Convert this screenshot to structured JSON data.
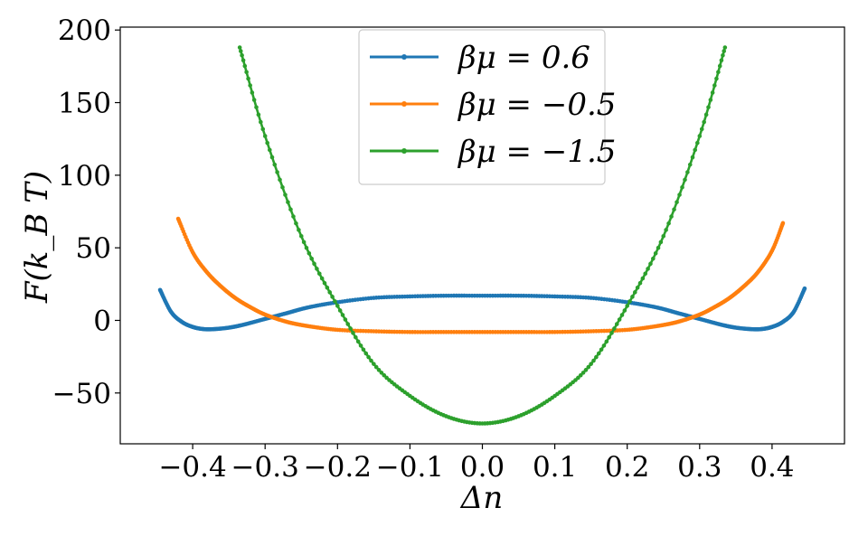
{
  "chart_data": {
    "type": "line",
    "xlabel": "Δn",
    "ylabel": "F(k_B T)",
    "xlim": [
      -0.5,
      0.5
    ],
    "ylim": [
      -85,
      202
    ],
    "xticks": [
      {
        "value": -0.4,
        "label": "−0.4"
      },
      {
        "value": -0.3,
        "label": "−0.3"
      },
      {
        "value": -0.2,
        "label": "−0.2"
      },
      {
        "value": -0.1,
        "label": "−0.1"
      },
      {
        "value": 0.0,
        "label": "0.0"
      },
      {
        "value": 0.1,
        "label": "0.1"
      },
      {
        "value": 0.2,
        "label": "0.2"
      },
      {
        "value": 0.3,
        "label": "0.3"
      },
      {
        "value": 0.4,
        "label": "0.4"
      }
    ],
    "yticks": [
      {
        "value": -50,
        "label": "−50"
      },
      {
        "value": 0,
        "label": "0"
      },
      {
        "value": 50,
        "label": "50"
      },
      {
        "value": 100,
        "label": "100"
      },
      {
        "value": 150,
        "label": "150"
      },
      {
        "value": 200,
        "label": "200"
      }
    ],
    "grid": false,
    "legend_position": "top-center",
    "markers": true,
    "series": [
      {
        "name": "βμ = 0.6",
        "color": "#1f77b4",
        "x": [
          -0.445,
          -0.43,
          -0.415,
          -0.4,
          -0.385,
          -0.37,
          -0.35,
          -0.33,
          -0.3,
          -0.27,
          -0.24,
          -0.2,
          -0.15,
          -0.1,
          -0.05,
          0.0,
          0.05,
          0.1,
          0.15,
          0.2,
          0.24,
          0.27,
          0.3,
          0.33,
          0.35,
          0.37,
          0.385,
          0.4,
          0.415,
          0.43,
          0.445
        ],
        "y": [
          21,
          6,
          -1,
          -4.5,
          -6,
          -6,
          -5,
          -3,
          1,
          5,
          9,
          12.5,
          15.5,
          16.5,
          17,
          17,
          17,
          16.5,
          15.5,
          12.5,
          9,
          5,
          1,
          -3,
          -5,
          -6,
          -6,
          -4.5,
          -1,
          6,
          22
        ]
      },
      {
        "name": "βμ = −0.5",
        "color": "#ff7f0e",
        "x": [
          -0.42,
          -0.4,
          -0.38,
          -0.36,
          -0.34,
          -0.32,
          -0.3,
          -0.27,
          -0.24,
          -0.2,
          -0.15,
          -0.1,
          -0.05,
          0.0,
          0.05,
          0.1,
          0.15,
          0.2,
          0.24,
          0.27,
          0.3,
          0.32,
          0.34,
          0.36,
          0.38,
          0.4,
          0.415
        ],
        "y": [
          70,
          47,
          33,
          23,
          15,
          9,
          4,
          -1,
          -4,
          -6.5,
          -7.5,
          -8,
          -8,
          -8,
          -8,
          -8,
          -7.5,
          -6.5,
          -4,
          -1,
          4,
          9,
          15,
          23,
          33,
          48,
          67
        ]
      },
      {
        "name": "βμ = −1.5",
        "color": "#2ca02c",
        "x": [
          -0.335,
          -0.3,
          -0.25,
          -0.2,
          -0.15,
          -0.1,
          -0.05,
          0.0,
          0.05,
          0.1,
          0.15,
          0.2,
          0.25,
          0.3,
          0.335
        ],
        "y": [
          188,
          127,
          58,
          10,
          -30,
          -52,
          -66,
          -71,
          -66,
          -52,
          -30,
          10,
          58,
          127,
          188
        ]
      }
    ]
  }
}
